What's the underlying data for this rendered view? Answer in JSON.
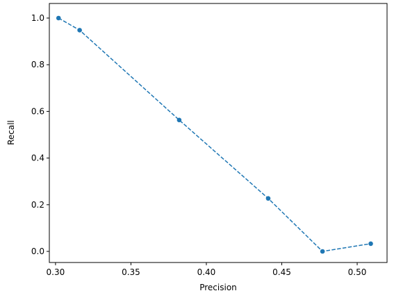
{
  "chart_data": {
    "type": "line",
    "x_label": "Precision",
    "y_label": "Recall",
    "x": [
      0.302,
      0.316,
      0.382,
      0.441,
      0.477,
      0.509
    ],
    "series": [
      {
        "color": "#1f77b4",
        "values": [
          1.0,
          0.948,
          0.563,
          0.227,
          0.0,
          0.033
        ]
      }
    ],
    "line_style": "dashed",
    "marker": "circle",
    "xlim": [
      0.2959,
      0.5198
    ],
    "xticks": [
      {
        "value": 0.3,
        "label": "0.30"
      },
      {
        "value": 0.35,
        "label": "0.35"
      },
      {
        "value": 0.4,
        "label": "0.40"
      },
      {
        "value": 0.45,
        "label": "0.45"
      },
      {
        "value": 0.5,
        "label": "0.50"
      }
    ],
    "ylim": [
      -0.0476,
      1.0625
    ],
    "yticks": [
      {
        "value": 0,
        "label": "0.0"
      },
      0.2,
      0.4,
      0.6,
      0.8,
      {
        "value": 1,
        "label": "1.0"
      }
    ],
    "grid": false
  }
}
